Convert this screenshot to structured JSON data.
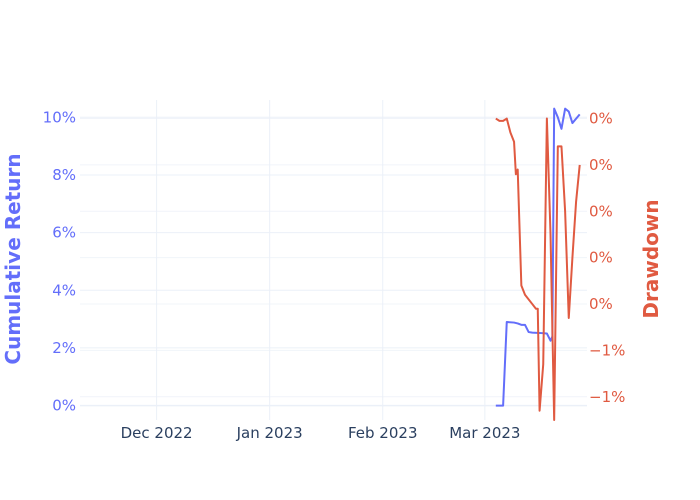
{
  "chart_data": {
    "type": "line",
    "title": "",
    "colors": {
      "cumulative": "#636efa",
      "drawdown": "#e05a41",
      "grid": "#ebf0f8",
      "tick": "#2a3f5f"
    },
    "x_axis": {
      "ticks": [
        {
          "date": "2022-12-01",
          "label": "Dec 2022"
        },
        {
          "date": "2023-01-01",
          "label": "Jan 2023"
        },
        {
          "date": "2023-02-01",
          "label": "Feb 2023"
        },
        {
          "date": "2023-03-01",
          "label": "Mar 2023"
        }
      ],
      "range": [
        "2022-11-10",
        "2023-03-29"
      ]
    },
    "y_left": {
      "title": "Cumulative Return",
      "range": [
        -0.5,
        10.6
      ],
      "ticks": [
        {
          "value": 0,
          "label": "0%"
        },
        {
          "value": 2,
          "label": "2%"
        },
        {
          "value": 4,
          "label": "4%"
        },
        {
          "value": 6,
          "label": "6%"
        },
        {
          "value": 8,
          "label": "8%"
        },
        {
          "value": 10,
          "label": "10%"
        }
      ]
    },
    "y_right": {
      "title": "Drawdown",
      "range": [
        -0.0065,
        0.0004
      ],
      "ticks": [
        {
          "value": 0,
          "label": "0%"
        },
        {
          "value": -0.001,
          "label": "0%"
        },
        {
          "value": -0.002,
          "label": "0%"
        },
        {
          "value": -0.003,
          "label": "0%"
        },
        {
          "value": -0.004,
          "label": "0%"
        },
        {
          "value": -0.005,
          "label": "−1%"
        },
        {
          "value": -0.006,
          "label": "−1%"
        }
      ]
    },
    "series": [
      {
        "axis": "left",
        "points": [
          [
            "2023-03-04",
            0.0
          ],
          [
            "2023-03-06",
            0.0
          ],
          [
            "2023-03-07",
            2.9
          ],
          [
            "2023-03-09",
            2.88
          ],
          [
            "2023-03-10",
            2.85
          ],
          [
            "2023-03-11",
            2.8
          ],
          [
            "2023-03-12",
            2.8
          ],
          [
            "2023-03-13",
            2.55
          ],
          [
            "2023-03-14",
            2.53
          ],
          [
            "2023-03-16",
            2.52
          ],
          [
            "2023-03-18",
            2.5
          ],
          [
            "2023-03-19",
            2.25
          ],
          [
            "2023-03-19T12:00",
            2.4
          ],
          [
            "2023-03-20",
            10.3
          ],
          [
            "2023-03-21",
            10.0
          ],
          [
            "2023-03-22",
            9.6
          ],
          [
            "2023-03-23",
            10.3
          ],
          [
            "2023-03-24",
            10.2
          ],
          [
            "2023-03-25",
            9.8
          ],
          [
            "2023-03-27",
            10.1
          ]
        ]
      },
      {
        "axis": "right",
        "points": [
          [
            "2023-03-04",
            0.0
          ],
          [
            "2023-03-05",
            -5e-05
          ],
          [
            "2023-03-06",
            -5e-05
          ],
          [
            "2023-03-07",
            0.0
          ],
          [
            "2023-03-08",
            -0.0003
          ],
          [
            "2023-03-09",
            -0.0005
          ],
          [
            "2023-03-09T12:00",
            -0.0012
          ],
          [
            "2023-03-10",
            -0.0011
          ],
          [
            "2023-03-11",
            -0.0036
          ],
          [
            "2023-03-12",
            -0.0038
          ],
          [
            "2023-03-14",
            -0.004
          ],
          [
            "2023-03-15",
            -0.0041
          ],
          [
            "2023-03-15T12:00",
            -0.0041
          ],
          [
            "2023-03-16",
            -0.0063
          ],
          [
            "2023-03-17",
            -0.0053
          ],
          [
            "2023-03-18",
            0.0
          ],
          [
            "2023-03-19",
            -0.0025
          ],
          [
            "2023-03-20",
            -0.0065
          ],
          [
            "2023-03-21",
            -0.0006
          ],
          [
            "2023-03-22",
            -0.0006
          ],
          [
            "2023-03-23",
            -0.002
          ],
          [
            "2023-03-24",
            -0.0043
          ],
          [
            "2023-03-25",
            -0.003
          ],
          [
            "2023-03-26",
            -0.0018
          ],
          [
            "2023-03-27",
            -0.001
          ]
        ]
      }
    ]
  }
}
